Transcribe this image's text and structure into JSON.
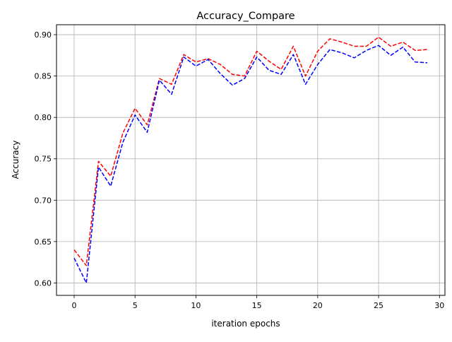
{
  "chart_data": {
    "type": "line",
    "title": "Accuracy_Compare",
    "xlabel": "iteration epochs",
    "ylabel": "Accuracy",
    "xlim": [
      -1.45,
      30.45
    ],
    "ylim": [
      0.585,
      0.912
    ],
    "xticks": [
      0,
      5,
      10,
      15,
      20,
      25,
      30
    ],
    "yticks": [
      0.6,
      0.65,
      0.7,
      0.75,
      0.8,
      0.85,
      0.9
    ],
    "grid": true,
    "x": [
      0,
      1,
      2,
      3,
      4,
      5,
      6,
      7,
      8,
      9,
      10,
      11,
      12,
      13,
      14,
      15,
      16,
      17,
      18,
      19,
      20,
      21,
      22,
      23,
      24,
      25,
      26,
      27,
      28,
      29
    ],
    "series": [
      {
        "color": "#ff0000",
        "linestyle": "dashed",
        "values": [
          0.64,
          0.621,
          0.747,
          0.729,
          0.781,
          0.811,
          0.791,
          0.847,
          0.84,
          0.876,
          0.867,
          0.871,
          0.864,
          0.852,
          0.85,
          0.88,
          0.868,
          0.858,
          0.886,
          0.85,
          0.88,
          0.895,
          0.891,
          0.886,
          0.886,
          0.897,
          0.886,
          0.891,
          0.881,
          0.882
        ]
      },
      {
        "color": "#0000ff",
        "linestyle": "dashed",
        "values": [
          0.63,
          0.6,
          0.74,
          0.717,
          0.77,
          0.803,
          0.782,
          0.845,
          0.828,
          0.873,
          0.862,
          0.87,
          0.853,
          0.839,
          0.847,
          0.873,
          0.857,
          0.852,
          0.876,
          0.84,
          0.864,
          0.882,
          0.878,
          0.872,
          0.881,
          0.887,
          0.875,
          0.885,
          0.867,
          0.866
        ]
      }
    ]
  }
}
